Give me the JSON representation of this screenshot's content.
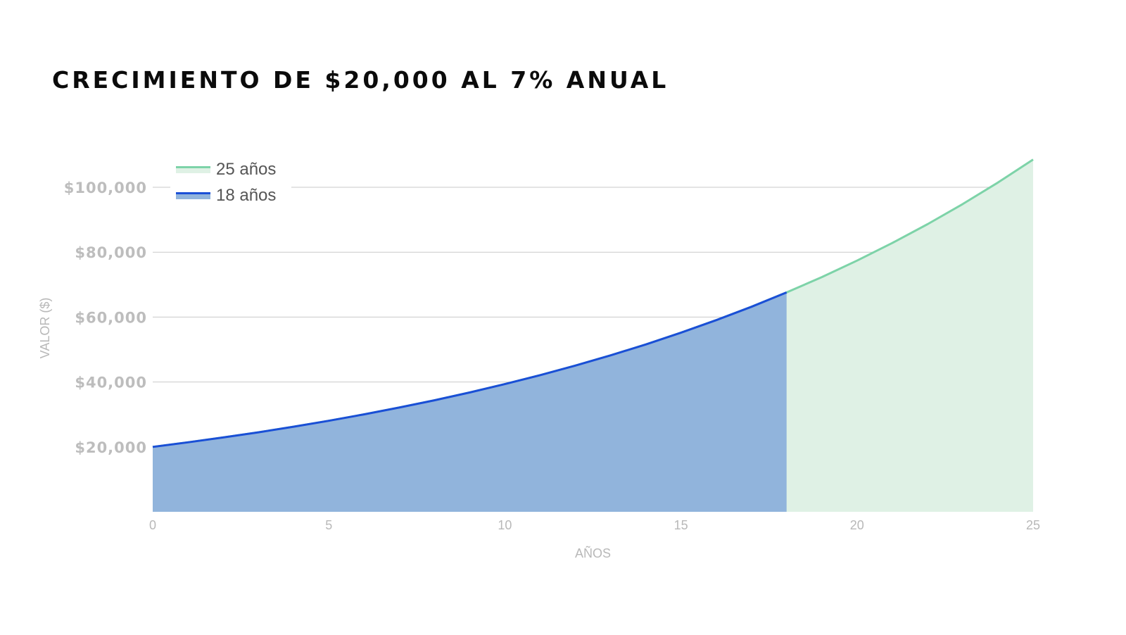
{
  "title": "CRECIMIENTO DE $20,000 AL 7% ANUAL",
  "colors": {
    "series_25_line": "#7dd3a8",
    "series_25_fill": "#dff1e5",
    "series_18_line": "#1a4fd6",
    "series_18_fill": "#91b4dc",
    "grid": "#c9c9c9",
    "tick_text": "#bdbdbd"
  },
  "chart_data": {
    "type": "area",
    "xlabel": "AÑOS",
    "ylabel": "VALOR ($)",
    "xlim": [
      0,
      25
    ],
    "ylim": [
      0,
      110000
    ],
    "x_ticks": [
      "0",
      "5",
      "10",
      "15",
      "20",
      "25"
    ],
    "y_ticks": [
      {
        "value": 20000,
        "label": "$20,000"
      },
      {
        "value": 40000,
        "label": "$40,000"
      },
      {
        "value": 60000,
        "label": "$60,000"
      },
      {
        "value": 80000,
        "label": "$80,000"
      },
      {
        "value": 100000,
        "label": "$100,000"
      }
    ],
    "grid": true,
    "legend_position": "top-left",
    "series": [
      {
        "name": "25 años",
        "x": [
          0,
          1,
          2,
          3,
          4,
          5,
          6,
          7,
          8,
          9,
          10,
          11,
          12,
          13,
          14,
          15,
          16,
          17,
          18,
          19,
          20,
          21,
          22,
          23,
          24,
          25
        ],
        "values": [
          20000,
          21400,
          22898,
          24501,
          26216,
          28051,
          30015,
          32116,
          34364,
          36769,
          39343,
          42097,
          45044,
          48197,
          51571,
          55181,
          59043,
          63176,
          67599,
          72331,
          77394,
          82812,
          88608,
          94811,
          101448,
          108549
        ]
      },
      {
        "name": "18 años",
        "x": [
          0,
          1,
          2,
          3,
          4,
          5,
          6,
          7,
          8,
          9,
          10,
          11,
          12,
          13,
          14,
          15,
          16,
          17,
          18
        ],
        "values": [
          20000,
          21400,
          22898,
          24501,
          26216,
          28051,
          30015,
          32116,
          34364,
          36769,
          39343,
          42097,
          45044,
          48197,
          51571,
          55181,
          59043,
          63176,
          67599
        ]
      }
    ]
  }
}
